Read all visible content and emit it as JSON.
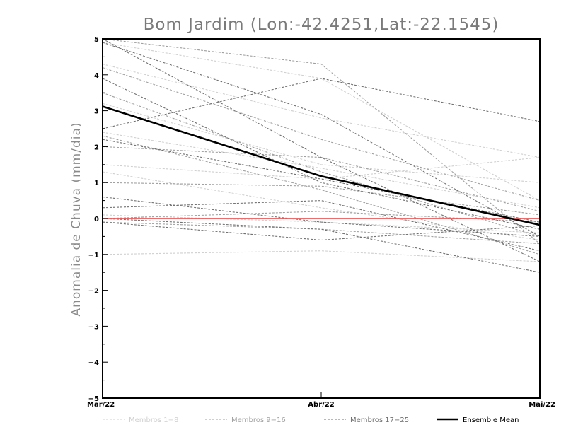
{
  "chart_data": {
    "type": "line",
    "title": "Bom Jardim (Lon:-42.4251,Lat:-22.1545)",
    "ylabel": "Anomalia de Chuva (mm/dia)",
    "xlabel": "",
    "x": [
      "Mar/22",
      "Abr/22",
      "Mai/22"
    ],
    "ylim": [
      -5,
      5
    ],
    "yticks": [
      "-5",
      "-4",
      "-3",
      "-2",
      "-1",
      "0",
      "1",
      "2",
      "3",
      "4",
      "5"
    ],
    "grid": false,
    "legend_position": "bottom",
    "legend": [
      {
        "label": "Membros 1-8",
        "color": "#d0d0d0",
        "style": "dashed"
      },
      {
        "label": "Membros 9-16",
        "color": "#a0a0a0",
        "style": "dashed"
      },
      {
        "label": "Membros 17-25",
        "color": "#707070",
        "style": "dashed"
      },
      {
        "label": "Ensemble Mean",
        "color": "#000000",
        "style": "solid"
      }
    ],
    "zero_line_color": "#e85a5a",
    "series": [
      {
        "group": "1-8",
        "values": [
          4.3,
          2.8,
          1.7
        ]
      },
      {
        "group": "1-8",
        "values": [
          3.2,
          1.5,
          1.0
        ]
      },
      {
        "group": "1-8",
        "values": [
          2.4,
          1.4,
          0.3
        ]
      },
      {
        "group": "1-8",
        "values": [
          1.5,
          1.1,
          1.7
        ]
      },
      {
        "group": "1-8",
        "values": [
          1.3,
          0.3,
          -0.6
        ]
      },
      {
        "group": "1-8",
        "values": [
          0.1,
          -0.1,
          -0.4
        ]
      },
      {
        "group": "1-8",
        "values": [
          -1.0,
          -0.9,
          -1.2
        ]
      },
      {
        "group": "1-8",
        "values": [
          4.9,
          3.9,
          0.5
        ]
      },
      {
        "group": "9-16",
        "values": [
          4.2,
          2.2,
          0.5
        ]
      },
      {
        "group": "9-16",
        "values": [
          3.5,
          1.3,
          -0.5
        ]
      },
      {
        "group": "9-16",
        "values": [
          2.3,
          0.8,
          -1.0
        ]
      },
      {
        "group": "9-16",
        "values": [
          2.0,
          1.7,
          0.2
        ]
      },
      {
        "group": "9-16",
        "values": [
          1.0,
          0.9,
          0.1
        ]
      },
      {
        "group": "9-16",
        "values": [
          0.0,
          0.2,
          -0.1
        ]
      },
      {
        "group": "9-16",
        "values": [
          -0.1,
          -0.3,
          -0.7
        ]
      },
      {
        "group": "9-16",
        "values": [
          5.0,
          4.3,
          -0.7
        ]
      },
      {
        "group": "17-25",
        "values": [
          5.0,
          1.7,
          -1.2
        ]
      },
      {
        "group": "17-25",
        "values": [
          4.9,
          2.9,
          -0.5
        ]
      },
      {
        "group": "17-25",
        "values": [
          2.5,
          3.9,
          2.7
        ]
      },
      {
        "group": "17-25",
        "values": [
          2.2,
          1.1,
          -0.1
        ]
      },
      {
        "group": "17-25",
        "values": [
          0.6,
          -0.1,
          -0.5
        ]
      },
      {
        "group": "17-25",
        "values": [
          0.3,
          0.5,
          -0.9
        ]
      },
      {
        "group": "17-25",
        "values": [
          -0.1,
          -0.6,
          -0.2
        ]
      },
      {
        "group": "17-25",
        "values": [
          0.0,
          -0.3,
          -1.5
        ]
      },
      {
        "group": "17-25",
        "values": [
          3.9,
          1.0,
          -0.3
        ]
      },
      {
        "group": "mean",
        "values": [
          3.12,
          1.18,
          -0.18
        ]
      },
      {
        "group": "zero",
        "values": [
          0.0,
          0.0,
          0.0
        ]
      }
    ]
  }
}
